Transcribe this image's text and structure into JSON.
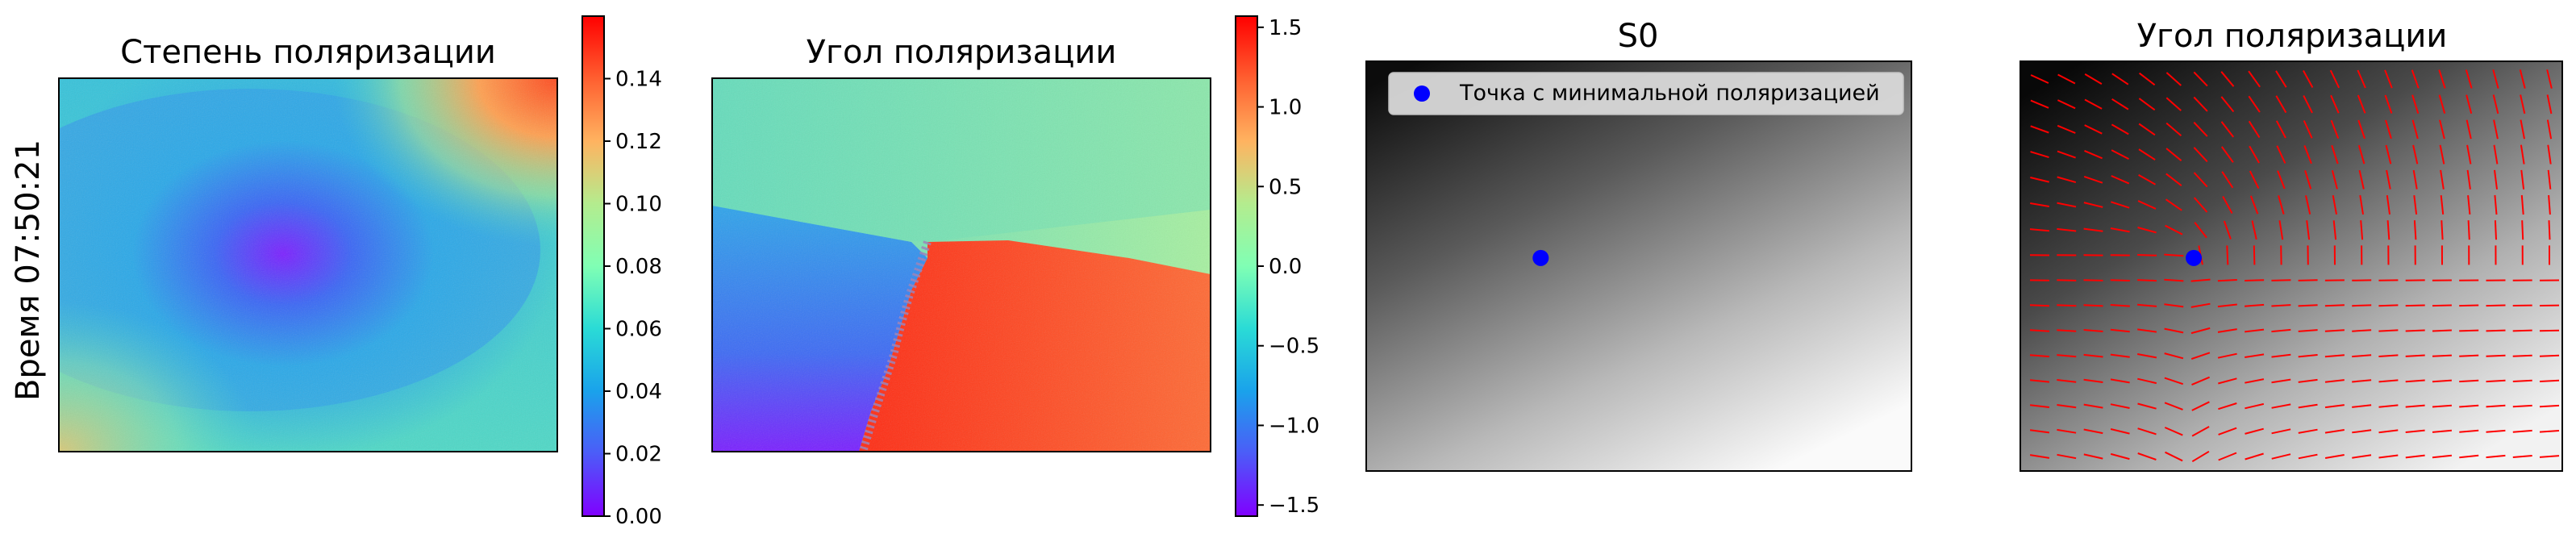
{
  "figure": {
    "row_label": "Время 07:50:21"
  },
  "colors": {
    "marker": "#0000ff",
    "quiver": "#ff0000",
    "legend_bg": "#d9d9d9"
  },
  "chart_data": [
    {
      "type": "heatmap",
      "title": "Степень поляризации",
      "colormap": "rainbow",
      "clim": [
        0.0,
        0.16
      ],
      "colorbar_ticks": [
        "0.00",
        "0.02",
        "0.04",
        "0.06",
        "0.08",
        "0.10",
        "0.12",
        "0.14"
      ],
      "colorbar_tick_values": [
        0.0,
        0.02,
        0.04,
        0.06,
        0.08,
        0.1,
        0.12,
        0.14
      ],
      "axes_visible": false,
      "description_values": {
        "minimum_approx": 0.0,
        "center_region": 0.03,
        "top_right_corner": 0.15,
        "bottom_left_corner": 0.1
      }
    },
    {
      "type": "heatmap",
      "title": "Угол поляризации",
      "colormap": "rainbow",
      "clim": [
        -1.57,
        1.57
      ],
      "colorbar_ticks": [
        "−1.5",
        "−1.0",
        "−0.5",
        "0.0",
        "0.5",
        "1.0",
        "1.5"
      ],
      "colorbar_tick_values": [
        -1.5,
        -1.0,
        -0.5,
        0.0,
        0.5,
        1.0,
        1.5
      ],
      "axes_visible": false
    },
    {
      "type": "heatmap",
      "title": "S0",
      "colormap": "gray",
      "axes_visible": false,
      "legend": {
        "placement": "top-right",
        "entries": [
          "Точка с минимальной поляризацией"
        ]
      },
      "points": [
        {
          "x": 0.32,
          "y": 0.48,
          "label": "Точка с минимальной поляризацией"
        }
      ]
    },
    {
      "type": "heatmap",
      "title": "Угол поляризации",
      "colormap": "gray",
      "overlay": "quiver",
      "axes_visible": false,
      "points": [
        {
          "x": 0.32,
          "y": 0.48
        }
      ]
    }
  ]
}
